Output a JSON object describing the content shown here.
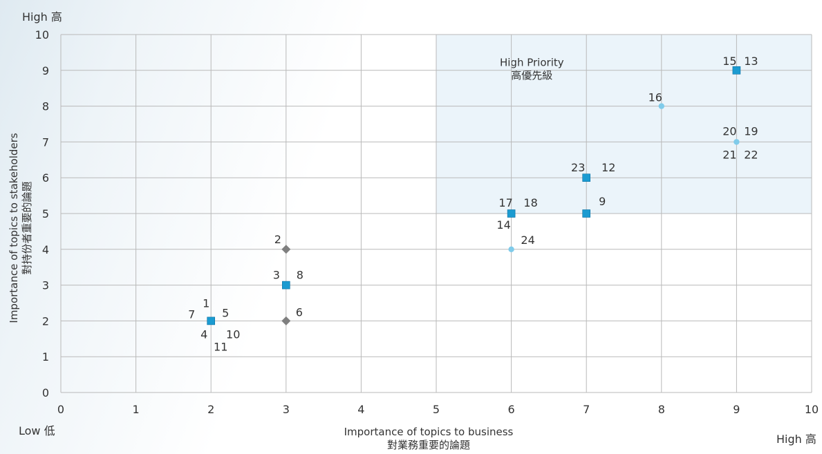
{
  "chart_data": {
    "type": "scatter",
    "xlabel": "Importance of topics to business",
    "xlabel_zh": "對業務重要的論題",
    "ylabel": "Importance of topics to stakeholders",
    "ylabel_zh": "對持份者重要的論題",
    "xlim": [
      0,
      10
    ],
    "ylim": [
      0,
      10
    ],
    "x_ticks": [
      "0",
      "1",
      "2",
      "3",
      "4",
      "5",
      "6",
      "7",
      "8",
      "9",
      "10"
    ],
    "y_ticks": [
      "0",
      "1",
      "2",
      "3",
      "4",
      "5",
      "6",
      "7",
      "8",
      "9",
      "10"
    ],
    "grid": true,
    "corner_labels": {
      "low": "Low 低",
      "high_x": "High 高",
      "high_y": "High 高"
    },
    "region": {
      "label": "High Priority",
      "label_zh": "高優先級",
      "x": [
        5,
        10
      ],
      "y": [
        5,
        10
      ]
    },
    "points": [
      {
        "x": 2,
        "y": 2,
        "marker": "square",
        "color": "#1b9bd1",
        "labels": [
          "1",
          "5",
          "7",
          "4",
          "10",
          "11"
        ]
      },
      {
        "x": 3,
        "y": 4,
        "marker": "diamond",
        "color": "#7f7f7f",
        "labels": [
          "2"
        ]
      },
      {
        "x": 3,
        "y": 3,
        "marker": "square",
        "color": "#1b9bd1",
        "labels": [
          "3",
          "8"
        ]
      },
      {
        "x": 3,
        "y": 2,
        "marker": "diamond",
        "color": "#7f7f7f",
        "labels": [
          "6"
        ]
      },
      {
        "x": 6,
        "y": 5,
        "marker": "square",
        "color": "#1b9bd1",
        "labels": [
          "17",
          "18",
          "14"
        ]
      },
      {
        "x": 6,
        "y": 4,
        "marker": "circle",
        "color": "#7fcbea",
        "labels": [
          "24"
        ]
      },
      {
        "x": 7,
        "y": 5,
        "marker": "square",
        "color": "#1b9bd1",
        "labels": [
          "9"
        ]
      },
      {
        "x": 7,
        "y": 6,
        "marker": "square",
        "color": "#1b9bd1",
        "labels": [
          "23",
          "12"
        ]
      },
      {
        "x": 8,
        "y": 8,
        "marker": "circle",
        "color": "#7fcbea",
        "labels": [
          "16"
        ]
      },
      {
        "x": 9,
        "y": 9,
        "marker": "square",
        "color": "#1b9bd1",
        "labels": [
          "15",
          "13"
        ]
      },
      {
        "x": 9,
        "y": 7,
        "marker": "circle",
        "color": "#7fcbea",
        "labels": [
          "20",
          "19",
          "21",
          "22"
        ]
      }
    ]
  }
}
